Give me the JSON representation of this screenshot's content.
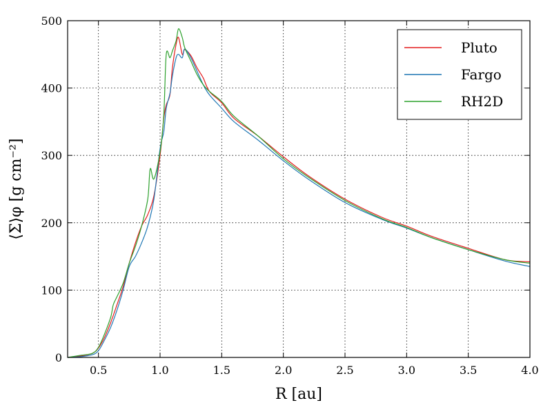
{
  "chart_data": {
    "type": "line",
    "title": "",
    "xlabel": "R [au]",
    "ylabel": "⟨Σ⟩φ  [g cm⁻²]",
    "xlim": [
      0.25,
      4.0
    ],
    "ylim": [
      0,
      500
    ],
    "xticks": [
      "0.5",
      "1.0",
      "1.5",
      "2.0",
      "2.5",
      "3.0",
      "3.5",
      "4.0"
    ],
    "yticks": [
      "0",
      "100",
      "200",
      "300",
      "400",
      "500"
    ],
    "grid": true,
    "legend_position": "top-right",
    "series": [
      {
        "name": "Pluto",
        "color": "#e31a1c",
        "x": [
          0.25,
          0.35,
          0.45,
          0.5,
          0.55,
          0.6,
          0.65,
          0.7,
          0.75,
          0.8,
          0.85,
          0.9,
          0.95,
          1.0,
          1.03,
          1.05,
          1.08,
          1.1,
          1.13,
          1.15,
          1.18,
          1.2,
          1.25,
          1.3,
          1.35,
          1.4,
          1.5,
          1.6,
          1.8,
          2.0,
          2.2,
          2.5,
          2.8,
          3.0,
          3.2,
          3.5,
          3.8,
          4.0
        ],
        "y": [
          0,
          2,
          6,
          14,
          30,
          52,
          78,
          105,
          140,
          170,
          195,
          212,
          240,
          300,
          355,
          375,
          390,
          430,
          465,
          475,
          450,
          457,
          448,
          430,
          415,
          395,
          378,
          355,
          328,
          298,
          270,
          235,
          208,
          195,
          180,
          162,
          145,
          142
        ]
      },
      {
        "name": "Fargo",
        "color": "#1f77b4",
        "x": [
          0.25,
          0.35,
          0.45,
          0.5,
          0.55,
          0.6,
          0.65,
          0.7,
          0.75,
          0.8,
          0.85,
          0.9,
          0.95,
          1.0,
          1.03,
          1.05,
          1.08,
          1.1,
          1.13,
          1.15,
          1.18,
          1.2,
          1.25,
          1.3,
          1.35,
          1.4,
          1.5,
          1.6,
          1.8,
          2.0,
          2.2,
          2.5,
          2.8,
          3.0,
          3.2,
          3.5,
          3.8,
          4.0
        ],
        "y": [
          0,
          1,
          4,
          10,
          26,
          45,
          70,
          100,
          135,
          150,
          170,
          195,
          235,
          310,
          335,
          370,
          392,
          418,
          445,
          450,
          445,
          458,
          445,
          425,
          405,
          390,
          370,
          350,
          322,
          292,
          265,
          230,
          205,
          192,
          178,
          160,
          143,
          135
        ]
      },
      {
        "name": "RH2D",
        "color": "#2ca02c",
        "x": [
          0.25,
          0.35,
          0.45,
          0.5,
          0.55,
          0.6,
          0.62,
          0.65,
          0.7,
          0.75,
          0.8,
          0.85,
          0.9,
          0.92,
          0.95,
          1.0,
          1.03,
          1.05,
          1.08,
          1.1,
          1.13,
          1.15,
          1.18,
          1.2,
          1.25,
          1.3,
          1.35,
          1.4,
          1.5,
          1.6,
          1.8,
          2.0,
          2.2,
          2.5,
          2.8,
          3.0,
          3.2,
          3.5,
          3.8,
          4.0
        ],
        "y": [
          0,
          3,
          6,
          15,
          35,
          60,
          78,
          90,
          110,
          140,
          165,
          195,
          235,
          280,
          265,
          305,
          360,
          450,
          445,
          455,
          470,
          488,
          475,
          460,
          440,
          420,
          405,
          395,
          380,
          358,
          328,
          295,
          268,
          233,
          206,
          193,
          178,
          160,
          145,
          140
        ]
      }
    ]
  }
}
